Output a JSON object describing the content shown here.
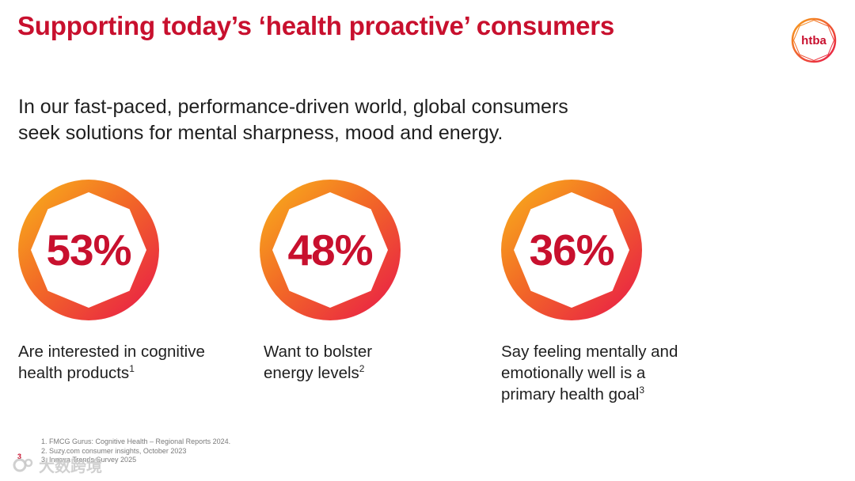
{
  "slide": {
    "title": "Supporting today’s ‘health proactive’ consumers",
    "intro_lines": [
      "In our fast-paced, performance-driven world, global consumers",
      "seek solutions for mental sharpness, mood and energy."
    ],
    "logo": {
      "text": "htba",
      "icon": "octagon-logo",
      "colors": [
        "#f5a623",
        "#e8204a"
      ]
    },
    "accent_color": "#c8102e",
    "gradient_colors": [
      "#f7a21b",
      "#f0402b",
      "#e8174a"
    ],
    "stats": [
      {
        "value": "53%",
        "desc_lines": [
          "Are interested in cognitive",
          "health products"
        ],
        "footnote_ref": "1"
      },
      {
        "value": "48%",
        "desc_lines": [
          "Want to bolster",
          "energy levels"
        ],
        "footnote_ref": "2"
      },
      {
        "value": "36%",
        "desc_lines": [
          "Say feeling mentally and",
          "emotionally well is a",
          "primary health goal"
        ],
        "footnote_ref": "3"
      }
    ],
    "footnotes": [
      "1. FMCG Gurus: Cognitive Health – Regional Reports 2024.",
      "2. Suzy.com consumer insights, October 2023",
      "3. Innova Trends Survey 2025"
    ],
    "page_number": "3",
    "watermark": "大数跨境"
  }
}
